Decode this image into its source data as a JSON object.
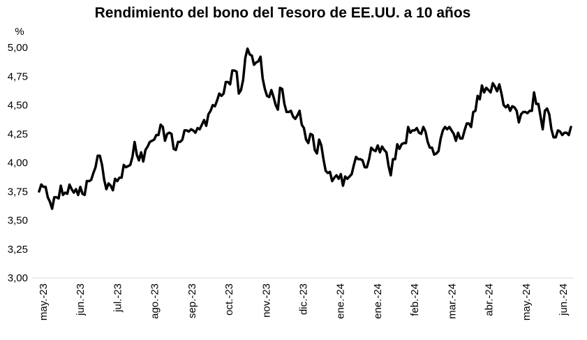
{
  "chart_data": {
    "type": "line",
    "title": "Rendimiento del bono del Tesoro de EE.UU. a 10 años",
    "ylabel": "%",
    "xlabel": "",
    "ylim": [
      3.0,
      5.0
    ],
    "y_ticks": [
      "5,00",
      "4,75",
      "4,50",
      "4,25",
      "4,00",
      "3,75",
      "3,50",
      "3,25",
      "3,00"
    ],
    "x_ticks": [
      "may.-23",
      "jun.-23",
      "jul.-23",
      "ago.-23",
      "sep.-23",
      "oct.-23",
      "nov.-23",
      "dic.-23",
      "ene.-24",
      "ene.-24",
      "feb.-24",
      "mar.-24",
      "abr.-24",
      "may.-24",
      "jun.-24"
    ],
    "grid": false,
    "legend": "none",
    "line_color": "#000000",
    "series": [
      {
        "values": [
          3.75,
          3.81,
          3.79,
          3.79,
          3.7,
          3.66,
          3.6,
          3.7,
          3.7,
          3.69,
          3.8,
          3.72,
          3.74,
          3.73,
          3.81,
          3.77,
          3.74,
          3.77,
          3.72,
          3.79,
          3.73,
          3.72,
          3.84,
          3.84,
          3.85,
          3.91,
          3.96,
          4.06,
          4.06,
          3.98,
          3.85,
          3.77,
          3.82,
          3.8,
          3.76,
          3.86,
          3.84,
          3.87,
          3.87,
          3.98,
          3.96,
          3.97,
          3.98,
          4.05,
          4.18,
          4.07,
          4.02,
          4.09,
          4.01,
          4.11,
          4.14,
          4.18,
          4.19,
          4.2,
          4.24,
          4.24,
          4.33,
          4.31,
          4.19,
          4.25,
          4.26,
          4.25,
          4.12,
          4.11,
          4.18,
          4.18,
          4.2,
          4.28,
          4.28,
          4.27,
          4.29,
          4.28,
          4.26,
          4.3,
          4.29,
          4.33,
          4.37,
          4.32,
          4.42,
          4.45,
          4.5,
          4.49,
          4.54,
          4.6,
          4.58,
          4.6,
          4.7,
          4.7,
          4.68,
          4.8,
          4.8,
          4.79,
          4.6,
          4.63,
          4.72,
          4.91,
          4.99,
          4.94,
          4.93,
          4.85,
          4.87,
          4.88,
          4.92,
          4.73,
          4.64,
          4.58,
          4.57,
          4.63,
          4.57,
          4.5,
          4.46,
          4.65,
          4.64,
          4.51,
          4.44,
          4.44,
          4.45,
          4.4,
          4.38,
          4.41,
          4.45,
          4.33,
          4.3,
          4.2,
          4.17,
          4.25,
          4.24,
          4.11,
          4.08,
          4.2,
          4.15,
          4.03,
          3.93,
          3.91,
          3.92,
          3.84,
          3.87,
          3.89,
          3.86,
          3.9,
          3.8,
          3.88,
          3.86,
          3.88,
          3.9,
          3.98,
          4.05,
          4.03,
          4.03,
          4.02,
          3.96,
          3.96,
          4.03,
          4.13,
          4.11,
          4.1,
          4.15,
          4.09,
          4.14,
          4.11,
          4.09,
          3.97,
          3.89,
          4.03,
          4.03,
          4.16,
          4.12,
          4.16,
          4.17,
          4.17,
          4.31,
          4.26,
          4.28,
          4.28,
          4.3,
          4.26,
          4.25,
          4.31,
          4.27,
          4.18,
          4.13,
          4.13,
          4.07,
          4.08,
          4.1,
          4.21,
          4.28,
          4.31,
          4.29,
          4.31,
          4.28,
          4.25,
          4.19,
          4.26,
          4.21,
          4.21,
          4.28,
          4.34,
          4.34,
          4.31,
          4.44,
          4.45,
          4.58,
          4.55,
          4.67,
          4.61,
          4.65,
          4.63,
          4.61,
          4.69,
          4.66,
          4.62,
          4.68,
          4.6,
          4.5,
          4.48,
          4.5,
          4.45,
          4.49,
          4.48,
          4.45,
          4.35,
          4.42,
          4.44,
          4.44,
          4.43,
          4.45,
          4.45,
          4.61,
          4.51,
          4.51,
          4.4,
          4.29,
          4.45,
          4.47,
          4.42,
          4.29,
          4.22,
          4.22,
          4.28,
          4.27,
          4.24,
          4.26,
          4.26,
          4.24,
          4.31
        ]
      }
    ]
  }
}
